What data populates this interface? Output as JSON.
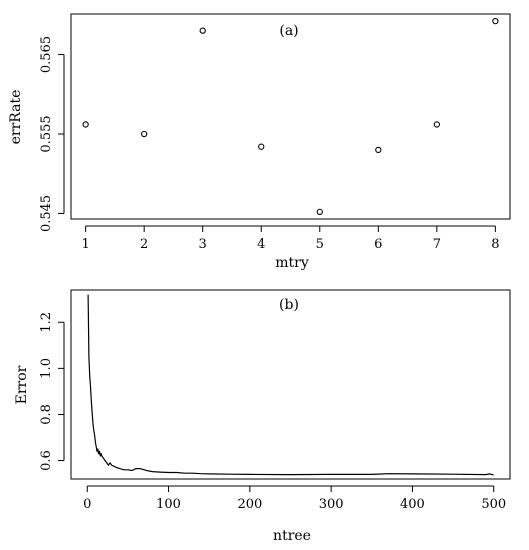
{
  "chart_data": [
    {
      "type": "scatter",
      "panel_label": "(a)",
      "xlabel": "mtry",
      "ylabel": "errRate",
      "x": [
        1,
        2,
        3,
        4,
        5,
        6,
        7,
        8
      ],
      "y": [
        0.5562,
        0.555,
        0.568,
        0.5534,
        0.5452,
        0.553,
        0.5562,
        0.5692
      ],
      "xlim": [
        0.75,
        8.25
      ],
      "ylim": [
        0.5443,
        0.5701
      ],
      "xticks": [
        1,
        2,
        3,
        4,
        5,
        6,
        7,
        8
      ],
      "yticks": [
        0.545,
        0.555,
        0.565
      ],
      "xtick_labels": [
        "1",
        "2",
        "3",
        "4",
        "5",
        "6",
        "7",
        "8"
      ],
      "ytick_labels": [
        "0.545",
        "0.555",
        "0.565"
      ],
      "marker": "open-circle",
      "grid": false,
      "legend": "none"
    },
    {
      "type": "line",
      "panel_label": "(b)",
      "xlabel": "ntree",
      "ylabel": "Error",
      "x": [
        1,
        2,
        3,
        4,
        5,
        6,
        7,
        8,
        9,
        10,
        11,
        12,
        13,
        14,
        15,
        16,
        17,
        18,
        20,
        22,
        24,
        26,
        28,
        30,
        33,
        36,
        40,
        45,
        50,
        55,
        60,
        65,
        70,
        75,
        80,
        90,
        100,
        110,
        120,
        130,
        140,
        150,
        175,
        200,
        250,
        300,
        350,
        370,
        400,
        450,
        490,
        495,
        500
      ],
      "y": [
        1.32,
        1.05,
        0.97,
        0.92,
        0.86,
        0.81,
        0.76,
        0.73,
        0.71,
        0.68,
        0.66,
        0.64,
        0.65,
        0.63,
        0.64,
        0.62,
        0.63,
        0.62,
        0.61,
        0.6,
        0.59,
        0.58,
        0.59,
        0.58,
        0.575,
        0.57,
        0.565,
        0.56,
        0.56,
        0.557,
        0.565,
        0.565,
        0.56,
        0.555,
        0.552,
        0.55,
        0.548,
        0.548,
        0.545,
        0.545,
        0.543,
        0.542,
        0.541,
        0.54,
        0.539,
        0.54,
        0.54,
        0.543,
        0.542,
        0.541,
        0.539,
        0.542,
        0.538
      ],
      "xlim": [
        -20,
        520
      ],
      "ylim": [
        0.52,
        1.34
      ],
      "xticks": [
        0,
        100,
        200,
        300,
        400,
        500
      ],
      "yticks": [
        0.6,
        0.8,
        1.0,
        1.2
      ],
      "xtick_labels": [
        "0",
        "100",
        "200",
        "300",
        "400",
        "500"
      ],
      "ytick_labels": [
        "0.6",
        "0.8",
        "1.0",
        "1.2"
      ],
      "grid": false,
      "legend": "none"
    }
  ]
}
